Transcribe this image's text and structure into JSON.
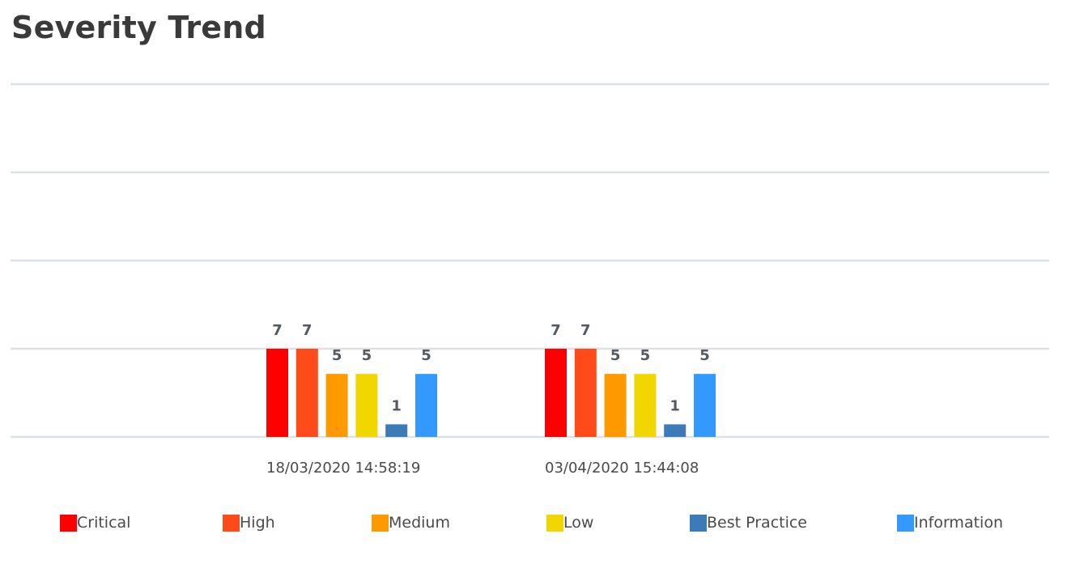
{
  "page_title": "Severity Trend",
  "chart_data": {
    "type": "bar",
    "title": "Severity Trend",
    "categories": [
      "18/03/2020 14:58:19",
      "03/04/2020 15:44:08"
    ],
    "series": [
      {
        "name": "Critical",
        "color": "#ff0000",
        "values": [
          7,
          7
        ]
      },
      {
        "name": "High",
        "color": "#ff4a1a",
        "values": [
          7,
          7
        ]
      },
      {
        "name": "Medium",
        "color": "#ff9900",
        "values": [
          5,
          5
        ]
      },
      {
        "name": "Low",
        "color": "#f2d600",
        "values": [
          5,
          5
        ]
      },
      {
        "name": "Best Practice",
        "color": "#3d7ab8",
        "values": [
          1,
          1
        ]
      },
      {
        "name": "Information",
        "color": "#3399ff",
        "values": [
          5,
          5
        ]
      }
    ],
    "ylim": [
      0,
      28
    ],
    "grid": true,
    "data_labels": true,
    "legend_position": "bottom"
  }
}
